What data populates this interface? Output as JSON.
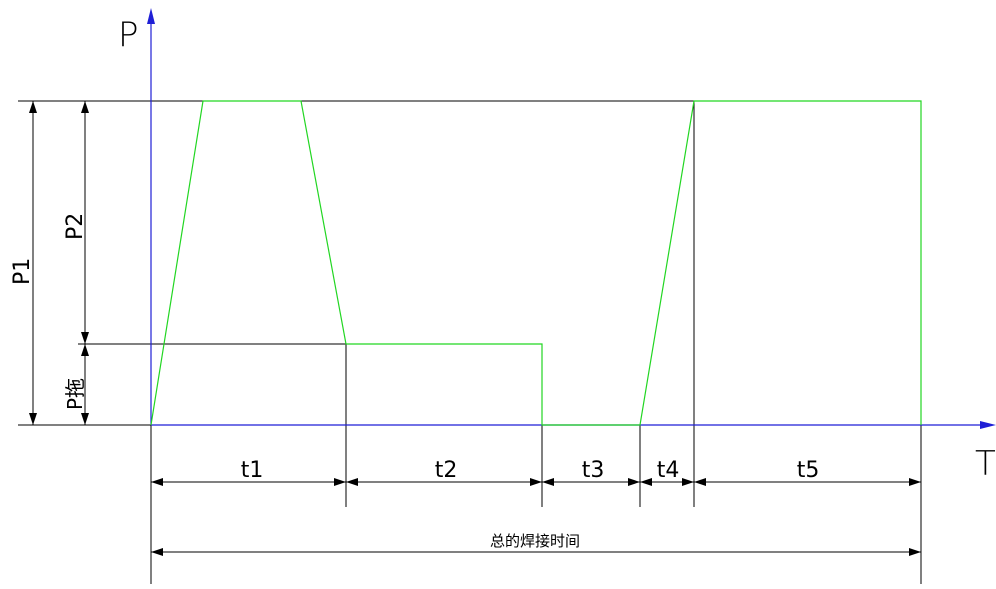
{
  "axes": {
    "y_label": "P",
    "x_label": "T"
  },
  "dimensions": {
    "p1_label": "P1",
    "p2_label": "P2",
    "p_drag_label": "P拖",
    "segments": [
      "t1",
      "t2",
      "t3",
      "t4",
      "t5"
    ],
    "total_label": "总的焊接时间"
  },
  "colors": {
    "axis": "#1f1fd6",
    "curve": "#22d622",
    "dimension": "#000000"
  }
}
